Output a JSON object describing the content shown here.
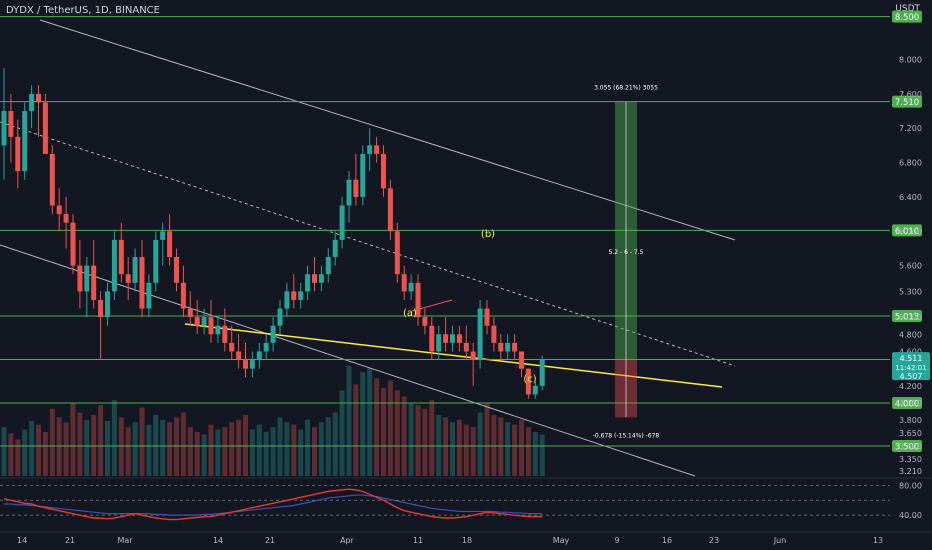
{
  "header": {
    "symbol": "DYDX / TetherUS, 1D, BINANCE",
    "currency": "USDT"
  },
  "price_axis": {
    "ticks": [
      "8.000",
      "7.600",
      "7.200",
      "6.800",
      "6.400",
      "6.000",
      "5.600",
      "5.300",
      "5.000",
      "4.800",
      "4.600",
      "4.200",
      "4.000",
      "3.800",
      "3.650",
      "3.500",
      "3.350",
      "3.210"
    ]
  },
  "time_axis": {
    "labels": [
      "14",
      "21",
      "Mar",
      "14",
      "21",
      "Apr",
      "11",
      "18",
      "May",
      "9",
      "16",
      "23",
      "Jun",
      "13"
    ]
  },
  "levels": [
    {
      "label": "8.500",
      "value": 8.5
    },
    {
      "label": "7.510",
      "value": 7.51
    },
    {
      "label": "6.010",
      "value": 6.01
    },
    {
      "label": "5.013",
      "value": 5.013
    },
    {
      "label": "4.507",
      "value": 4.507
    },
    {
      "label": "4.000",
      "value": 4.0
    },
    {
      "label": "3.500",
      "value": 3.5
    }
  ],
  "price_tags": {
    "last": "4.511",
    "countdown": "11:42:01",
    "level_a": "4.507"
  },
  "annotations": {
    "wave_a": "(a)",
    "wave_b": "(b)",
    "wave_c": "(c)",
    "target_up": "3.055 (68.21%) 3055",
    "target_mid": "5.2 - 6 - 7.5",
    "target_down": "-0.678 (-15.14%) -678"
  },
  "indicator_axis": {
    "ticks": [
      "80.00",
      "40.00"
    ]
  },
  "colors": {
    "up": "#26a69a",
    "down": "#ef5350",
    "level": "#4caf50",
    "wedge": "#ffeb3b",
    "channel": "#b2b5be",
    "bg": "#131722",
    "rsi": "#e53935",
    "signal": "#3f51b5"
  },
  "chart_data": {
    "type": "candlestick",
    "series": [
      {
        "name": "",
        "ohlc": [
          [
            7.0,
            7.9,
            6.6,
            7.4
          ],
          [
            7.4,
            7.6,
            6.8,
            7.1
          ],
          [
            7.1,
            7.3,
            6.5,
            6.7
          ],
          [
            6.7,
            7.5,
            6.6,
            7.4
          ],
          [
            7.4,
            7.7,
            7.2,
            7.6
          ],
          [
            7.6,
            7.7,
            7.1,
            7.5
          ],
          [
            7.5,
            7.6,
            6.9,
            6.9
          ],
          [
            6.9,
            7.0,
            6.2,
            6.3
          ],
          [
            6.3,
            6.5,
            6.0,
            6.2
          ],
          [
            6.2,
            6.4,
            5.8,
            6.1
          ],
          [
            6.1,
            6.2,
            5.5,
            5.6
          ],
          [
            5.6,
            5.9,
            5.1,
            5.3
          ],
          [
            5.3,
            5.7,
            5.0,
            5.6
          ],
          [
            5.6,
            5.9,
            5.1,
            5.2
          ],
          [
            5.2,
            5.3,
            4.5,
            5.0
          ],
          [
            5.0,
            5.4,
            4.9,
            5.3
          ],
          [
            5.3,
            6.0,
            5.2,
            5.9
          ],
          [
            5.9,
            6.1,
            5.4,
            5.5
          ],
          [
            5.5,
            5.7,
            5.2,
            5.4
          ],
          [
            5.4,
            5.8,
            5.3,
            5.7
          ],
          [
            5.7,
            5.9,
            5.0,
            5.1
          ],
          [
            5.1,
            5.5,
            5.0,
            5.4
          ],
          [
            5.4,
            6.0,
            5.3,
            5.9
          ],
          [
            5.9,
            6.1,
            5.6,
            6.0
          ],
          [
            6.0,
            6.2,
            5.6,
            5.7
          ],
          [
            5.7,
            5.8,
            5.3,
            5.4
          ],
          [
            5.4,
            5.6,
            5.0,
            5.1
          ],
          [
            5.1,
            5.3,
            4.9,
            5.0
          ],
          [
            5.0,
            5.2,
            4.8,
            4.9
          ],
          [
            4.9,
            5.1,
            4.8,
            5.0
          ],
          [
            5.0,
            5.2,
            4.7,
            4.8
          ],
          [
            4.8,
            5.0,
            4.7,
            4.9
          ],
          [
            4.9,
            5.1,
            4.6,
            4.7
          ],
          [
            4.7,
            4.9,
            4.5,
            4.6
          ],
          [
            4.6,
            4.8,
            4.4,
            4.5
          ],
          [
            4.5,
            4.7,
            4.3,
            4.4
          ],
          [
            4.4,
            4.6,
            4.3,
            4.5
          ],
          [
            4.5,
            4.7,
            4.4,
            4.6
          ],
          [
            4.6,
            4.8,
            4.5,
            4.7
          ],
          [
            4.7,
            5.0,
            4.6,
            4.9
          ],
          [
            4.9,
            5.2,
            4.8,
            5.1
          ],
          [
            5.1,
            5.4,
            5.0,
            5.3
          ],
          [
            5.3,
            5.5,
            5.1,
            5.2
          ],
          [
            5.2,
            5.4,
            5.1,
            5.3
          ],
          [
            5.3,
            5.6,
            5.2,
            5.5
          ],
          [
            5.5,
            5.7,
            5.3,
            5.4
          ],
          [
            5.4,
            5.6,
            5.3,
            5.5
          ],
          [
            5.5,
            5.8,
            5.4,
            5.7
          ],
          [
            5.7,
            6.0,
            5.6,
            5.9
          ],
          [
            5.9,
            6.4,
            5.8,
            6.3
          ],
          [
            6.3,
            6.7,
            6.1,
            6.6
          ],
          [
            6.6,
            6.9,
            6.3,
            6.4
          ],
          [
            6.4,
            7.0,
            6.3,
            6.9
          ],
          [
            6.9,
            7.2,
            6.7,
            7.0
          ],
          [
            7.0,
            7.1,
            6.8,
            6.9
          ],
          [
            6.9,
            7.0,
            6.4,
            6.5
          ],
          [
            6.5,
            6.6,
            5.9,
            6.0
          ],
          [
            6.0,
            6.1,
            5.4,
            5.5
          ],
          [
            5.5,
            5.6,
            5.2,
            5.3
          ],
          [
            5.3,
            5.5,
            5.2,
            5.4
          ],
          [
            5.4,
            5.5,
            4.9,
            5.0
          ],
          [
            5.0,
            5.1,
            4.8,
            4.9
          ],
          [
            4.9,
            5.0,
            4.5,
            4.6
          ],
          [
            4.6,
            4.9,
            4.5,
            4.8
          ],
          [
            4.8,
            5.0,
            4.6,
            4.7
          ],
          [
            4.7,
            4.9,
            4.6,
            4.8
          ],
          [
            4.8,
            4.9,
            4.6,
            4.7
          ],
          [
            4.7,
            4.9,
            4.5,
            4.6
          ],
          [
            4.6,
            4.7,
            4.2,
            4.5
          ],
          [
            4.5,
            5.2,
            4.4,
            5.1
          ],
          [
            5.1,
            5.2,
            4.8,
            4.9
          ],
          [
            4.9,
            5.0,
            4.6,
            4.7
          ],
          [
            4.7,
            4.8,
            4.5,
            4.6
          ],
          [
            4.6,
            4.8,
            4.5,
            4.7
          ],
          [
            4.7,
            4.8,
            4.5,
            4.6
          ],
          [
            4.6,
            4.6,
            4.3,
            4.4
          ],
          [
            4.4,
            4.4,
            4.05,
            4.1
          ],
          [
            4.1,
            4.25,
            4.05,
            4.2
          ],
          [
            4.2,
            4.55,
            4.15,
            4.511
          ]
        ]
      }
    ],
    "x_start": "2022-02-08",
    "y_range": [
      3.15,
      8.6
    ],
    "volume": [
      40,
      35,
      30,
      38,
      45,
      42,
      36,
      55,
      48,
      44,
      60,
      52,
      46,
      50,
      58,
      45,
      62,
      48,
      40,
      44,
      56,
      42,
      50,
      46,
      44,
      48,
      52,
      40,
      36,
      34,
      42,
      38,
      40,
      44,
      46,
      50,
      38,
      42,
      36,
      40,
      48,
      44,
      42,
      38,
      46,
      40,
      44,
      48,
      52,
      70,
      90,
      75,
      85,
      88,
      80,
      72,
      78,
      70,
      65,
      60,
      58,
      55,
      62,
      50,
      48,
      44,
      46,
      42,
      40,
      52,
      60,
      50,
      48,
      44,
      42,
      46,
      40,
      36,
      34
    ],
    "indicator": {
      "ticks": [
        80,
        40
      ],
      "rsi": [
        62,
        60,
        58,
        56,
        55,
        52,
        50,
        48,
        46,
        44,
        42,
        40,
        38,
        36,
        36,
        35,
        36,
        38,
        40,
        42,
        40,
        38,
        36,
        35,
        34,
        34,
        35,
        36,
        37,
        38,
        38,
        40,
        42,
        44,
        46,
        48,
        50,
        52,
        54,
        56,
        58,
        60,
        62,
        64,
        66,
        68,
        70,
        72,
        73,
        74,
        75,
        74,
        72,
        68,
        64,
        60,
        55,
        50,
        46,
        44,
        42,
        40,
        38,
        37,
        36,
        36,
        37,
        38,
        40,
        42,
        44,
        43,
        42,
        41,
        40,
        39,
        38,
        38,
        38
      ],
      "signal": [
        55,
        55,
        54,
        54,
        53,
        52,
        51,
        50,
        49,
        48,
        47,
        46,
        45,
        44,
        43,
        42,
        42,
        42,
        42,
        42,
        42,
        42,
        41,
        41,
        40,
        40,
        40,
        40,
        40,
        41,
        41,
        42,
        43,
        44,
        45,
        46,
        47,
        48,
        49,
        50,
        51,
        52,
        53,
        55,
        57,
        59,
        61,
        63,
        64,
        65,
        66,
        67,
        67,
        66,
        65,
        63,
        61,
        59,
        57,
        55,
        53,
        51,
        49,
        48,
        47,
        46,
        45,
        45,
        45,
        45,
        45,
        45,
        44,
        44,
        43,
        43,
        42,
        42,
        42
      ]
    }
  }
}
